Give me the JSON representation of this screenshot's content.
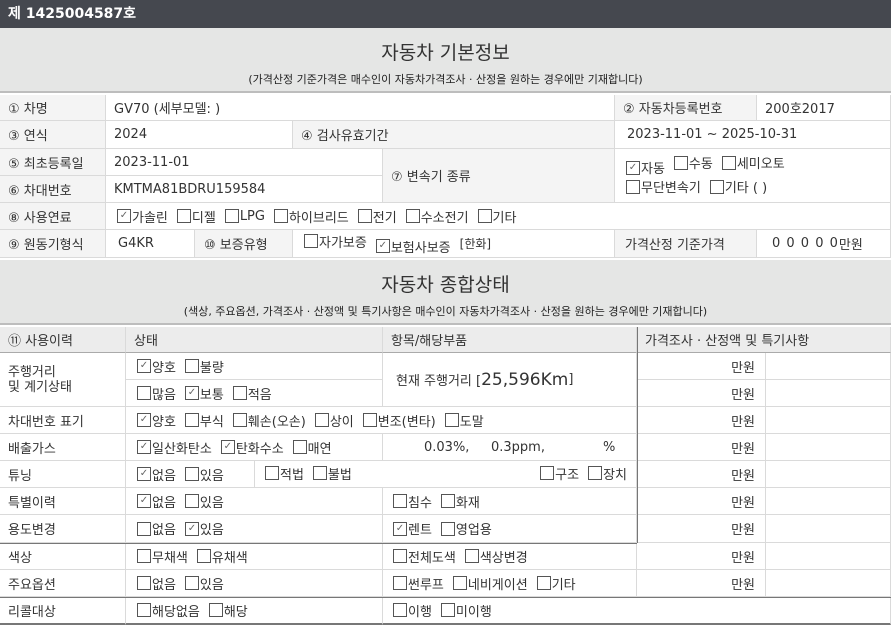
{
  "header": {
    "doc_number": "제 1425004587호"
  },
  "basic": {
    "title": "자동차 기본정보",
    "subtitle": "(가격산정 기준가격은 매수인이 자동차가격조사 · 산정을 원하는 경우에만 기재합니다)",
    "car_name_label": "① 차명",
    "car_name": "GV70 (세부모델: )",
    "reg_no_label": "② 자동차등록번호",
    "reg_no": "200호2017",
    "year_label": "③ 연식",
    "year": "2024",
    "inspection_label": "④ 검사유효기간",
    "inspection": "2023-11-01 ~ 2025-10-31",
    "first_reg_label": "⑤ 최초등록일",
    "first_reg": "2023-11-01",
    "vin_label": "⑥ 차대번호",
    "vin": "KMTMA81BDRU159584",
    "transmission_label": "⑦ 변속기 종류",
    "transmission": {
      "row1": [
        {
          "label": "자동",
          "checked": true
        },
        {
          "label": "수동",
          "checked": false
        },
        {
          "label": "세미오토",
          "checked": false
        }
      ],
      "row2": [
        {
          "label": "무단변속기",
          "checked": false
        },
        {
          "label": "기타 (        )",
          "checked": false
        }
      ]
    },
    "fuel_label": "⑧ 사용연료",
    "fuel": [
      {
        "label": "가솔린",
        "checked": true
      },
      {
        "label": "디젤",
        "checked": false
      },
      {
        "label": "LPG",
        "checked": false
      },
      {
        "label": "하이브리드",
        "checked": false
      },
      {
        "label": "전기",
        "checked": false
      },
      {
        "label": "수소전기",
        "checked": false
      },
      {
        "label": "기타",
        "checked": false
      }
    ],
    "engine_label": "⑨ 원동기형식",
    "engine": "G4KR",
    "warranty_label": "⑩ 보증유형",
    "warranty": [
      {
        "label": "자가보증",
        "checked": false
      },
      {
        "label": "보험사보증",
        "checked": true
      }
    ],
    "warranty_company": "[한화]",
    "price_label": "가격산정 기준가격",
    "price": "0 0 0 0 0",
    "price_unit": "만원"
  },
  "status": {
    "title": "자동차 종합상태",
    "subtitle": "(색상, 주요옵션, 가격조사 · 산정액 및 특기사항은 매수인이 자동차가격조사 · 산정을 원하는 경우에만 기재합니다)",
    "columns": [
      "⑪ 사용이력",
      "상태",
      "항목/해당부품",
      "가격조사 · 산정액 및 특기사항"
    ],
    "unit": "만원",
    "mileage": {
      "label": "주행거리\n및 계기상태",
      "row1": [
        {
          "label": "양호",
          "checked": true
        },
        {
          "label": "불량",
          "checked": false
        }
      ],
      "row2": [
        {
          "label": "많음",
          "checked": false
        },
        {
          "label": "보통",
          "checked": true
        },
        {
          "label": "적음",
          "checked": false
        }
      ],
      "current_prefix": "현재 주행거리 [ ",
      "current_value": "25,596Km",
      "current_suffix": " ]"
    },
    "vin_mark": {
      "label": "차대번호 표기",
      "state": [
        {
          "label": "양호",
          "checked": true
        },
        {
          "label": "부식",
          "checked": false
        },
        {
          "label": "훼손(오손)",
          "checked": false
        },
        {
          "label": "상이",
          "checked": false
        },
        {
          "label": "변조(변타)",
          "checked": false
        },
        {
          "label": "도말",
          "checked": false
        }
      ]
    },
    "emission": {
      "label": "배출가스",
      "state": [
        {
          "label": "일산화탄소",
          "checked": true
        },
        {
          "label": "탄화수소",
          "checked": true
        },
        {
          "label": "매연",
          "checked": false
        }
      ],
      "values": [
        "0.03%,",
        "0.3ppm,",
        "%"
      ]
    },
    "tuning": {
      "label": "튜닝",
      "state": [
        {
          "label": "없음",
          "checked": true
        },
        {
          "label": "있음",
          "checked": false
        }
      ],
      "legality": [
        {
          "label": "적법",
          "checked": false
        },
        {
          "label": "불법",
          "checked": false
        }
      ],
      "items": [
        {
          "label": "구조",
          "checked": false
        },
        {
          "label": "장치",
          "checked": false
        }
      ]
    },
    "special": {
      "label": "특별이력",
      "state": [
        {
          "label": "없음",
          "checked": true
        },
        {
          "label": "있음",
          "checked": false
        }
      ],
      "items": [
        {
          "label": "침수",
          "checked": false
        },
        {
          "label": "화재",
          "checked": false
        }
      ]
    },
    "usage": {
      "label": "용도변경",
      "state": [
        {
          "label": "없음",
          "checked": false
        },
        {
          "label": "있음",
          "checked": true
        }
      ],
      "items": [
        {
          "label": "렌트",
          "checked": true
        },
        {
          "label": "영업용",
          "checked": false
        }
      ]
    },
    "color": {
      "label": "색상",
      "state": [
        {
          "label": "무채색",
          "checked": false
        },
        {
          "label": "유채색",
          "checked": false
        }
      ],
      "items": [
        {
          "label": "전체도색",
          "checked": false
        },
        {
          "label": "색상변경",
          "checked": false
        }
      ]
    },
    "options": {
      "label": "주요옵션",
      "state": [
        {
          "label": "없음",
          "checked": false
        },
        {
          "label": "있음",
          "checked": false
        }
      ],
      "items": [
        {
          "label": "썬루프",
          "checked": false
        },
        {
          "label": "네비게이션",
          "checked": false
        },
        {
          "label": "기타",
          "checked": false
        }
      ]
    },
    "recall": {
      "label": "리콜대상",
      "state": [
        {
          "label": "해당없음",
          "checked": false
        },
        {
          "label": "해당",
          "checked": false
        }
      ],
      "items": [
        {
          "label": "이행",
          "checked": false
        },
        {
          "label": "미이행",
          "checked": false
        }
      ]
    }
  }
}
